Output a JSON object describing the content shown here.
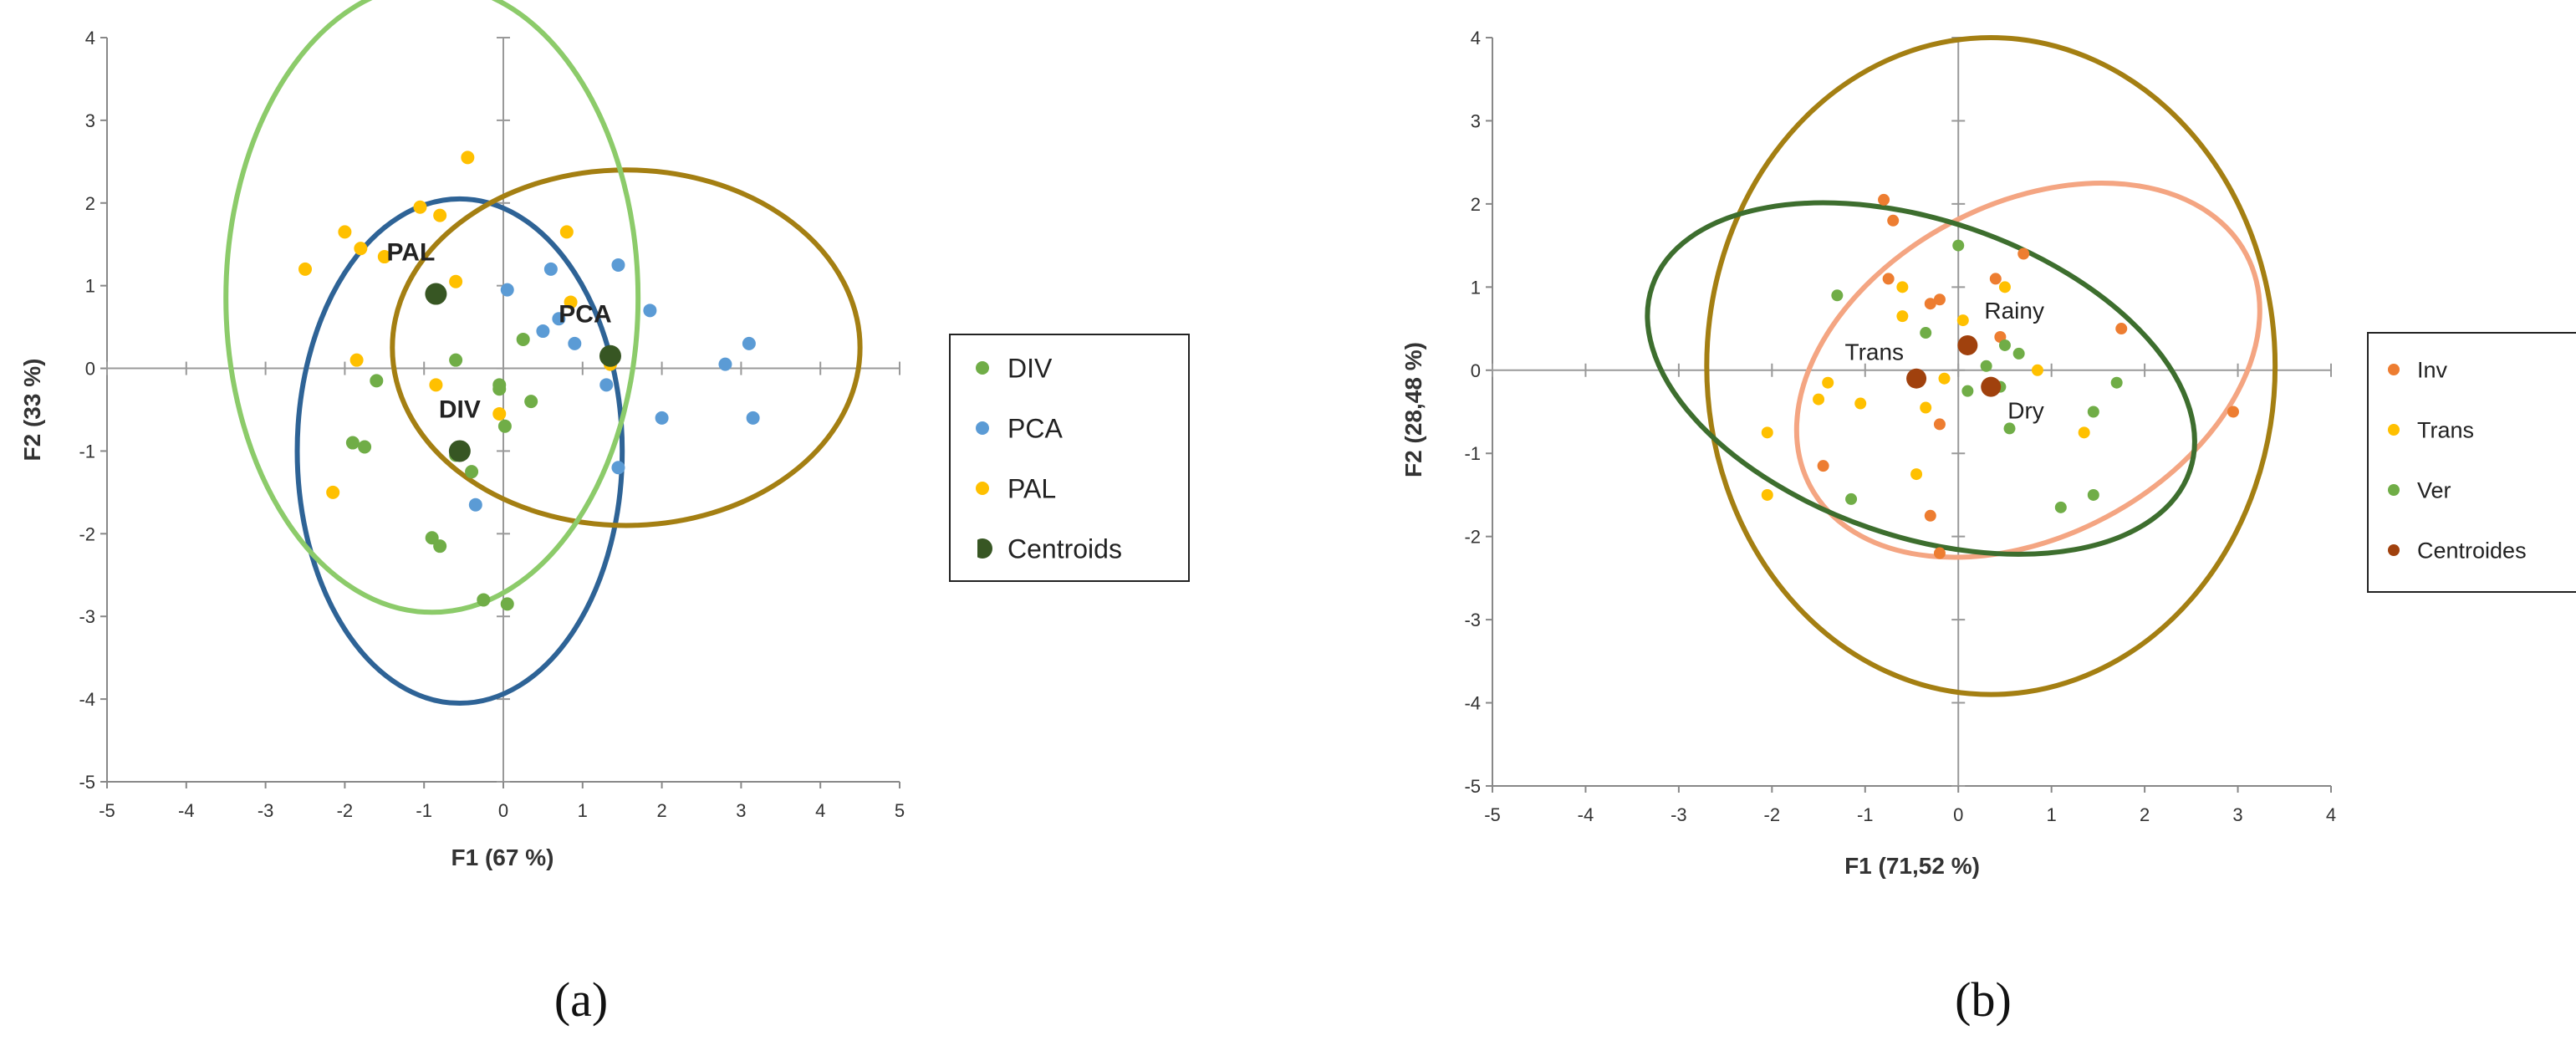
{
  "chart_data": [
    {
      "type": "scatter",
      "panel_label": "(a)",
      "xlabel": "F1 (67 %)",
      "ylabel": "F2 (33 %)",
      "xlim": [
        -5,
        5
      ],
      "ylim": [
        -5,
        4
      ],
      "xticks": [
        -5,
        -4,
        -3,
        -2,
        -1,
        0,
        1,
        2,
        3,
        4,
        5
      ],
      "yticks": [
        -5,
        -4,
        -3,
        -2,
        -1,
        0,
        1,
        2,
        3,
        4
      ],
      "legend": [
        {
          "label": "DIV",
          "color": "#70ad47",
          "marker": "dot"
        },
        {
          "label": "PCA",
          "color": "#5b9bd5",
          "marker": "dot"
        },
        {
          "label": "PAL",
          "color": "#ffc000",
          "marker": "dot"
        },
        {
          "label": "Centroids",
          "color": "#375623",
          "marker": "half-dot"
        }
      ],
      "series": [
        {
          "name": "DIV",
          "color": "#70ad47",
          "points": [
            [
              -1.6,
              -0.15
            ],
            [
              -1.9,
              -0.9
            ],
            [
              -1.75,
              -0.95
            ],
            [
              -0.6,
              0.1
            ],
            [
              -0.05,
              -0.2
            ],
            [
              -0.05,
              -0.25
            ],
            [
              0.02,
              -0.7
            ],
            [
              0.25,
              0.35
            ],
            [
              0.35,
              -0.4
            ],
            [
              -0.4,
              -1.25
            ],
            [
              -0.9,
              -2.05
            ],
            [
              -0.8,
              -2.15
            ],
            [
              -0.25,
              -2.8
            ],
            [
              0.05,
              -2.85
            ],
            [
              -0.6,
              -1.05
            ]
          ]
        },
        {
          "name": "PCA",
          "color": "#5b9bd5",
          "points": [
            [
              0.05,
              0.95
            ],
            [
              0.6,
              1.2
            ],
            [
              0.7,
              0.6
            ],
            [
              0.5,
              0.45
            ],
            [
              0.9,
              0.3
            ],
            [
              1.45,
              1.25
            ],
            [
              1.85,
              0.7
            ],
            [
              1.3,
              -0.2
            ],
            [
              1.45,
              -1.2
            ],
            [
              2.0,
              -0.6
            ],
            [
              2.8,
              0.05
            ],
            [
              3.1,
              0.3
            ],
            [
              3.15,
              -0.6
            ],
            [
              -0.35,
              -1.65
            ]
          ]
        },
        {
          "name": "PAL",
          "color": "#ffc000",
          "points": [
            [
              -0.45,
              2.55
            ],
            [
              -1.05,
              1.95
            ],
            [
              -0.8,
              1.85
            ],
            [
              -2.0,
              1.65
            ],
            [
              -1.8,
              1.45
            ],
            [
              -1.5,
              1.35
            ],
            [
              -2.5,
              1.2
            ],
            [
              -0.6,
              1.05
            ],
            [
              0.8,
              1.65
            ],
            [
              0.85,
              0.8
            ],
            [
              -1.85,
              0.1
            ],
            [
              -0.85,
              -0.2
            ],
            [
              -0.05,
              -0.55
            ],
            [
              -2.15,
              -1.5
            ],
            [
              1.35,
              0.05
            ]
          ]
        }
      ],
      "centroids": [
        {
          "label": "PAL",
          "x": -0.85,
          "y": 0.9
        },
        {
          "label": "PCA",
          "x": 1.35,
          "y": 0.15
        },
        {
          "label": "DIV",
          "x": -0.55,
          "y": -1.0
        }
      ],
      "ellipses": [
        {
          "group": "DIV",
          "color": "#2e6396",
          "cx": -0.55,
          "cy": -1.0,
          "rx": 2.05,
          "ry": 3.05
        },
        {
          "group": "PCA",
          "color": "#a47f12",
          "cx": 1.55,
          "cy": 0.25,
          "rx": 2.95,
          "ry": 2.15
        },
        {
          "group": "PAL",
          "color": "#8ccb6a",
          "cx": -0.9,
          "cy": 0.85,
          "rx": 2.6,
          "ry": 3.8
        }
      ]
    },
    {
      "type": "scatter",
      "panel_label": "(b)",
      "xlabel": "F1 (71,52 %)",
      "ylabel": "F2 (28,48 %)",
      "xlim": [
        -5,
        4
      ],
      "ylim": [
        -5,
        4
      ],
      "xticks": [
        -5,
        -4,
        -3,
        -2,
        -1,
        0,
        1,
        2,
        3,
        4
      ],
      "yticks": [
        -5,
        -4,
        -3,
        -2,
        -1,
        0,
        1,
        2,
        3,
        4
      ],
      "legend": [
        {
          "label": "Inv",
          "color": "#ed7d31",
          "marker": "dot"
        },
        {
          "label": "Trans",
          "color": "#ffc000",
          "marker": "dot"
        },
        {
          "label": "Ver",
          "color": "#70ad47",
          "marker": "dot"
        },
        {
          "label": "Centroides",
          "color": "#a0410d",
          "marker": "dot"
        }
      ],
      "series": [
        {
          "name": "Inv",
          "color": "#ed7d31",
          "points": [
            [
              -0.8,
              2.05
            ],
            [
              -0.7,
              1.8
            ],
            [
              -0.75,
              1.1
            ],
            [
              -0.3,
              0.8
            ],
            [
              -0.2,
              0.85
            ],
            [
              0.4,
              1.1
            ],
            [
              0.7,
              1.4
            ],
            [
              0.45,
              0.4
            ],
            [
              1.75,
              0.5
            ],
            [
              2.95,
              -0.5
            ],
            [
              -0.2,
              -0.65
            ],
            [
              -1.45,
              -1.15
            ],
            [
              -0.3,
              -1.75
            ],
            [
              -0.2,
              -2.2
            ]
          ]
        },
        {
          "name": "Trans",
          "color": "#ffc000",
          "points": [
            [
              -0.6,
              1.0
            ],
            [
              -0.6,
              0.65
            ],
            [
              0.05,
              0.6
            ],
            [
              0.5,
              1.0
            ],
            [
              0.85,
              0.0
            ],
            [
              -0.15,
              -0.1
            ],
            [
              -0.35,
              -0.45
            ],
            [
              -1.4,
              -0.15
            ],
            [
              -1.5,
              -0.35
            ],
            [
              -1.05,
              -0.4
            ],
            [
              -2.05,
              -0.75
            ],
            [
              -2.05,
              -1.5
            ],
            [
              -0.45,
              -1.25
            ],
            [
              1.35,
              -0.75
            ]
          ]
        },
        {
          "name": "Ver",
          "color": "#70ad47",
          "points": [
            [
              0.0,
              1.5
            ],
            [
              -1.3,
              0.9
            ],
            [
              -0.35,
              0.45
            ],
            [
              0.3,
              0.05
            ],
            [
              0.5,
              0.3
            ],
            [
              0.65,
              0.2
            ],
            [
              0.45,
              -0.2
            ],
            [
              0.1,
              -0.25
            ],
            [
              1.45,
              -0.5
            ],
            [
              1.7,
              -0.15
            ],
            [
              0.55,
              -0.7
            ],
            [
              1.45,
              -1.5
            ],
            [
              1.1,
              -1.65
            ],
            [
              -1.15,
              -1.55
            ]
          ]
        }
      ],
      "centroids": [
        {
          "label": "Rainy",
          "x": 0.1,
          "y": 0.3
        },
        {
          "label": "Trans",
          "x": -0.45,
          "y": -0.1
        },
        {
          "label": "Dry",
          "x": 0.35,
          "y": -0.2
        }
      ],
      "ellipses": [
        {
          "group": "Inv",
          "color": "#a47f12",
          "cx": 0.35,
          "cy": 0.05,
          "rx": 3.05,
          "ry": 3.95,
          "rotate": 0
        },
        {
          "group": "Trans",
          "color": "#f4a582",
          "cx": 0.75,
          "cy": 0.0,
          "rx": 2.65,
          "ry": 2.0,
          "rotate": 28
        },
        {
          "group": "Ver",
          "color": "#3d6e2e",
          "cx": -0.4,
          "cy": -0.1,
          "rx": 3.05,
          "ry": 1.9,
          "rotate": -19
        }
      ]
    }
  ]
}
